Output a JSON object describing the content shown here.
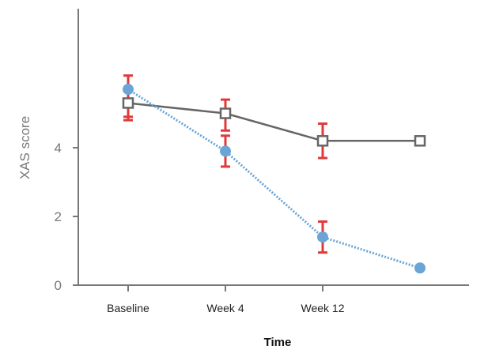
{
  "chart_data": {
    "type": "line",
    "title": "",
    "xlabel": "Time",
    "ylabel": "XAS score",
    "categories": [
      "Baseline",
      "Week 4",
      "Week 12",
      ""
    ],
    "yticks": [
      0,
      2,
      4
    ],
    "ylim": [
      0,
      8
    ],
    "grid": false,
    "legend": "none",
    "series": [
      {
        "marker": "open-square",
        "line_style": "solid",
        "color": "#666666",
        "values": [
          5.3,
          5.0,
          4.2,
          4.2
        ],
        "error_low": [
          4.8,
          4.5,
          3.7,
          null
        ],
        "error_high": [
          5.7,
          5.4,
          4.7,
          null
        ],
        "error_color": "#e03a3a"
      },
      {
        "marker": "filled-circle",
        "line_style": "dotted",
        "color": "#6aa5d6",
        "values": [
          5.7,
          3.9,
          1.4,
          0.5
        ],
        "error_low": [
          4.9,
          3.45,
          0.95,
          null
        ],
        "error_high": [
          6.1,
          4.35,
          1.85,
          null
        ],
        "error_color": "#e03a3a"
      }
    ]
  }
}
